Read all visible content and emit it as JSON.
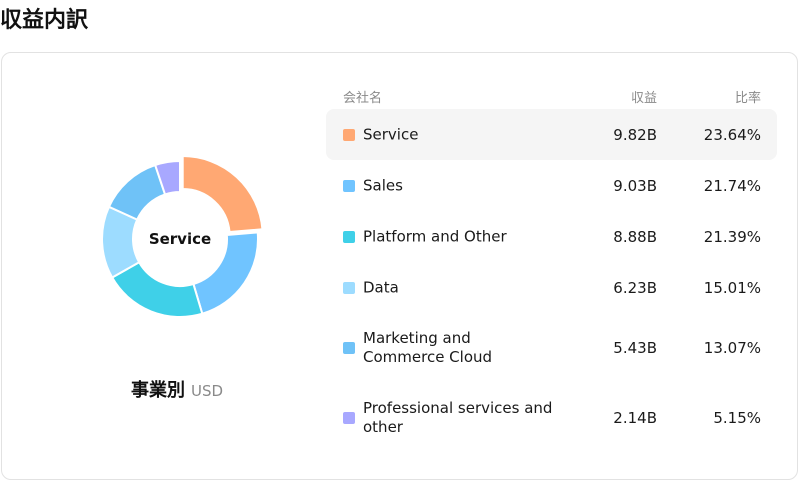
{
  "page": {
    "title": "収益内訳"
  },
  "caption": {
    "main": "事業別",
    "unit": "USD"
  },
  "table": {
    "headers": {
      "name": "会社名",
      "revenue": "収益",
      "ratio": "比率"
    }
  },
  "center_label": "Service",
  "colors": {
    "Service": "#FFA873",
    "Sales": "#70C4FF",
    "Platform and Other": "#3FD0E8",
    "Data": "#9DDCFF",
    "Marketing and Commerce Cloud": "#6FC2F7",
    "Professional services and other": "#A8A8FF"
  },
  "chart_data": {
    "type": "pie",
    "variant": "donut",
    "highlighted": "Service",
    "categories": [
      "Service",
      "Sales",
      "Platform and Other",
      "Data",
      "Marketing and Commerce Cloud",
      "Professional services and other"
    ],
    "revenue_labels": [
      "9.82B",
      "9.03B",
      "8.88B",
      "6.23B",
      "5.43B",
      "2.14B"
    ],
    "values": [
      9.82,
      9.03,
      8.88,
      6.23,
      5.43,
      2.14
    ],
    "ratio_labels": [
      "23.64%",
      "21.74%",
      "21.39%",
      "15.01%",
      "13.07%",
      "5.15%"
    ],
    "percentages": [
      23.64,
      21.74,
      21.39,
      15.01,
      13.07,
      5.15
    ],
    "colors": [
      "#FFA873",
      "#70C4FF",
      "#3FD0E8",
      "#9DDCFF",
      "#6FC2F7",
      "#A8A8FF"
    ],
    "unit": "USD"
  }
}
